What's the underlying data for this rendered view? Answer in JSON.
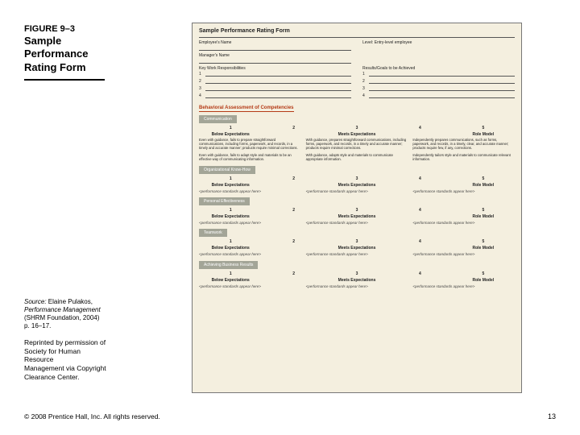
{
  "figure": {
    "label": "FIGURE 9–3",
    "title_l1": "Sample",
    "title_l2": "Performance",
    "title_l3": "Rating Form"
  },
  "source": {
    "line1_a": "Source:",
    "line1_b": " Elaine Pulakos,",
    "line2": "Performance Management",
    "line3": "(SHRM Foundation, 2004)",
    "line4": "p. 16–17."
  },
  "reprint": {
    "l1": "Reprinted by permission of",
    "l2": "Society for Human",
    "l3": "Resource",
    "l4": "Management via Copyright",
    "l5": "Clearance Center."
  },
  "footer": {
    "copyright": "© 2008 Prentice Hall, Inc. All rights reserved.",
    "page": "13"
  },
  "form": {
    "title": "Sample Performance Rating Form",
    "emp_name": "Employee's Name",
    "level": "Level: Entry-level employee",
    "mgr_name": "Manager's Name",
    "resp": "Key Work Responsibilities",
    "goals": "Results/Goals to be Achieved",
    "n1": "1",
    "n2": "2",
    "n3": "3",
    "n4": "4",
    "behav_header": "Behavioral Assessment of Competencies",
    "comm_badge": "Communication",
    "s_be": "Below Expectations",
    "s_me": "Meets Expectations",
    "s_rm": "Role Model",
    "s1": "1",
    "s2": "2",
    "s3": "3",
    "s4": "4",
    "s5": "5",
    "d1": "Even with guidance, fails to prepare straightforward communications, including forms, paperwork, and records, in a timely and accurate manner; products require minimal corrections.",
    "d2": "With guidance, prepares straightforward communications, including forms, paperwork, and records, in a timely and accurate manner; products require minimal corrections.",
    "d3": "Independently prepares communications, such as forms, paperwork, and records, in a timely, clear, and accurate manner; products require few, if any, corrections.",
    "d4": "Even with guidance, fails to adapt style and materials to be an effective way of communicating information.",
    "d5": "With guidance, adapts style and materials to communicate appropriate information.",
    "d6": "Independently tailors style and materials to communicate relevant information.",
    "org_badge": "Organizational Know-How",
    "ph_text": "<performance standards appear here>",
    "pe_badge": "Personal Effectiveness",
    "tw_badge": "Teamwork",
    "atb_badge": "Achieving Business Results"
  }
}
